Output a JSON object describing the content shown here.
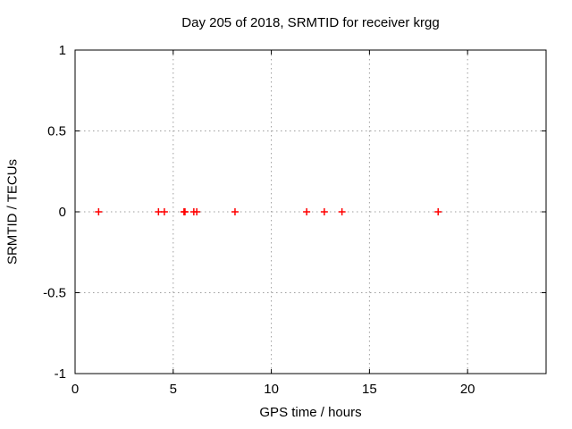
{
  "chart_data": {
    "type": "scatter",
    "title": "Day 205 of 2018, SRMTID for receiver krgg",
    "xlabel": "GPS time / hours",
    "ylabel": "SRMTID / TECUs",
    "xlim": [
      0,
      24
    ],
    "ylim": [
      -1,
      1
    ],
    "xticks": [
      0,
      5,
      10,
      15,
      20
    ],
    "xtick_labels": [
      "0",
      "5",
      "10",
      "15",
      "20"
    ],
    "yticks": [
      -1,
      -0.5,
      0,
      0.5,
      1
    ],
    "ytick_labels": [
      "-1",
      "-0.5",
      "0",
      "0.5",
      "1"
    ],
    "grid": true,
    "legend": "none",
    "series": [
      {
        "name": "SRMTID",
        "marker": "plus",
        "color": "#ff0000",
        "points": [
          [
            1.2,
            0
          ],
          [
            4.25,
            0
          ],
          [
            4.55,
            0
          ],
          [
            5.55,
            0
          ],
          [
            5.6,
            0
          ],
          [
            6.05,
            0
          ],
          [
            6.2,
            0
          ],
          [
            8.15,
            0
          ],
          [
            11.8,
            0
          ],
          [
            12.7,
            0
          ],
          [
            13.6,
            0
          ],
          [
            18.5,
            0
          ]
        ]
      }
    ],
    "colors": {
      "marker": "#ff0000",
      "grid": "#9e9e9e",
      "axis": "#000000",
      "text": "#000000",
      "background": "#ffffff"
    }
  }
}
